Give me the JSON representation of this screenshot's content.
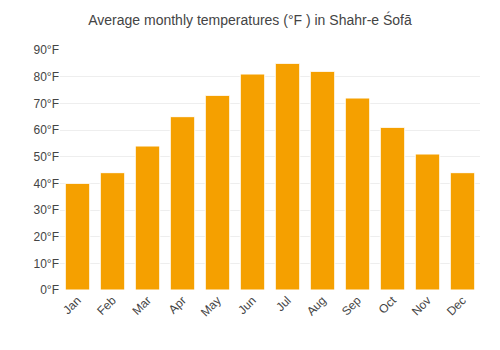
{
  "chart_data": {
    "type": "bar",
    "title": "Average monthly temperatures (°F ) in Shahr-e Śofā",
    "categories": [
      "Jan",
      "Feb",
      "Mar",
      "Apr",
      "May",
      "Jun",
      "Jul",
      "Aug",
      "Sep",
      "Oct",
      "Nov",
      "Dec"
    ],
    "values": [
      40,
      44,
      54,
      65,
      73,
      81,
      85,
      82,
      72,
      61,
      51,
      44
    ],
    "color": "#F5A000",
    "ylim": [
      0,
      90
    ],
    "yticks": [
      {
        "value": 0,
        "label": "0°F"
      },
      {
        "value": 10,
        "label": "10°F"
      },
      {
        "value": 20,
        "label": "20°F"
      },
      {
        "value": 30,
        "label": "30°F"
      },
      {
        "value": 40,
        "label": "40°F"
      },
      {
        "value": 50,
        "label": "50°F"
      },
      {
        "value": 60,
        "label": "60°F"
      },
      {
        "value": 70,
        "label": "70°F"
      },
      {
        "value": 80,
        "label": "80°F"
      },
      {
        "value": 90,
        "label": "90°F"
      }
    ],
    "grid": true
  }
}
